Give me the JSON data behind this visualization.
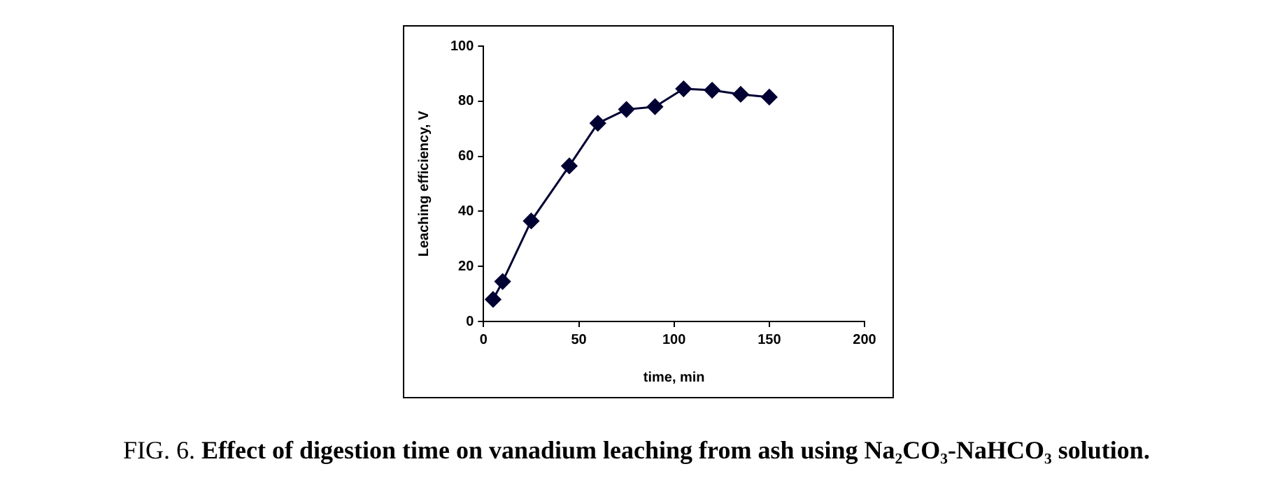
{
  "chart_data": {
    "type": "line",
    "xlabel": "time, min",
    "ylabel": "Leaching efficiency, V",
    "x": [
      5,
      10,
      25,
      45,
      60,
      75,
      90,
      105,
      120,
      135,
      150
    ],
    "series": [
      {
        "color": "#000033",
        "values": [
          8,
          14.5,
          36.5,
          56.5,
          72,
          77,
          78,
          84.5,
          84,
          82.5,
          81.5
        ]
      }
    ],
    "xlim": [
      0,
      200
    ],
    "xticks": [
      0,
      50,
      100,
      150,
      200
    ],
    "ylim": [
      0,
      100
    ],
    "yticks": [
      0,
      20,
      40,
      60,
      80,
      100
    ],
    "grid": false,
    "legend": false,
    "marker": "diamond",
    "line_style": "solid",
    "annotations": [
      "FIG. 6.",
      "Effect of digestion time on vanadium leaching from ash using Na₂CO₃-NaHCO₃ solution."
    ]
  }
}
